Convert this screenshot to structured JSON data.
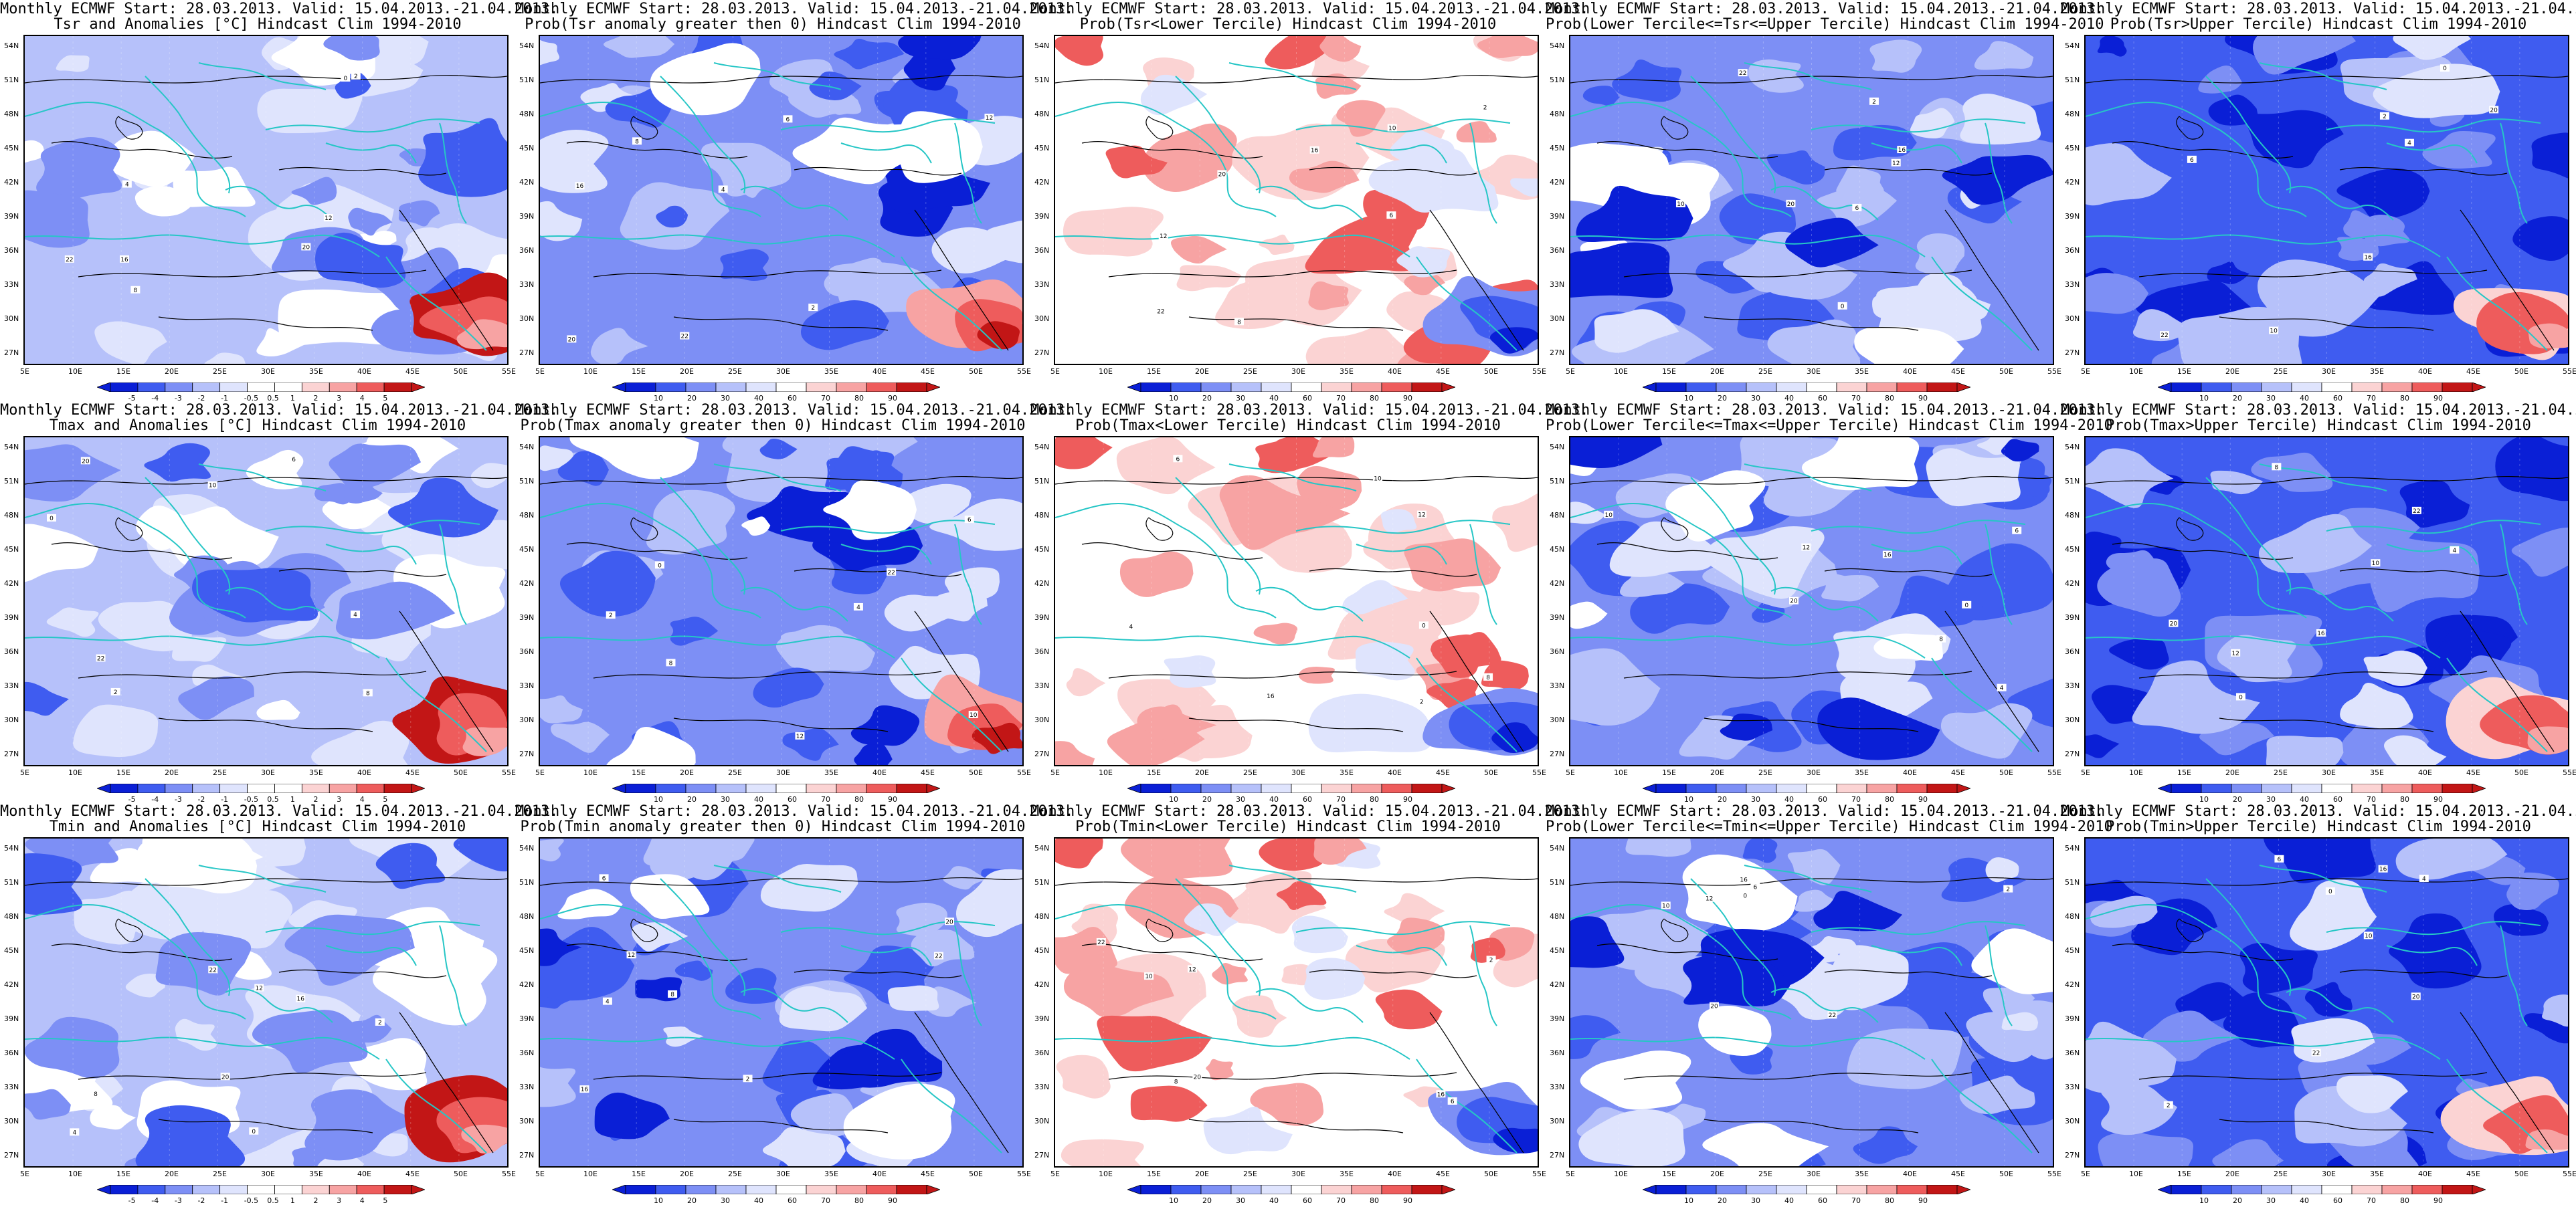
{
  "common": {
    "header": "Monthly ECMWF Start: 28.03.2013. Valid: 15.04.2013.-21.04.2013.",
    "lat_labels": [
      "54N",
      "51N",
      "48N",
      "45N",
      "42N",
      "39N",
      "36N",
      "33N",
      "30N",
      "27N"
    ],
    "lon_labels": [
      "5E",
      "10E",
      "15E",
      "20E",
      "25E",
      "30E",
      "35E",
      "40E",
      "45E",
      "50E",
      "55E"
    ],
    "anomaly_scale": [
      "-5",
      "-4",
      "-3",
      "-2",
      "-1",
      "-0.5",
      "0.5",
      "1",
      "2",
      "3",
      "4",
      "5"
    ],
    "prob_scale": [
      "10",
      "20",
      "30",
      "40",
      "60",
      "70",
      "80",
      "90"
    ],
    "colors": {
      "dark_blue": "#0a1fd6",
      "blue": "#3f5cf0",
      "mid_blue": "#7d8ff5",
      "light_blue": "#b6c1fa",
      "pale_blue": "#dfe4fd",
      "white": "#ffffff",
      "pale_red": "#fbd3d3",
      "light_red": "#f7a3a3",
      "red": "#ee5c5c",
      "dark_red": "#c21616",
      "coastline": "#26c6c6",
      "contour": "#000000"
    }
  },
  "panels": [
    {
      "subtitle": "Tsr and Anomalies [°C] Hindcast Clim 1994-2010",
      "scale": "anomaly",
      "tone": "anomaly-cool"
    },
    {
      "subtitle": "Prob(Tsr anomaly greater then 0) Hindcast Clim 1994-2010",
      "scale": "prob",
      "tone": "cool-warm-se"
    },
    {
      "subtitle": "Prob(Tsr<Lower Tercile) Hindcast Clim 1994-2010",
      "scale": "prob",
      "tone": "warm"
    },
    {
      "subtitle": "Prob(Lower Tercile<=Tsr<=Upper Tercile) Hindcast Clim 1994-2010",
      "scale": "prob",
      "tone": "cool-mid"
    },
    {
      "subtitle": "Prob(Tsr>Upper Tercile) Hindcast Clim 1994-2010",
      "scale": "prob",
      "tone": "cool-strong"
    },
    {
      "subtitle": "Tmax and Anomalies [°C] Hindcast Clim 1994-2010",
      "scale": "anomaly",
      "tone": "anomaly-cool"
    },
    {
      "subtitle": "Prob(Tmax anomaly greater then 0) Hindcast Clim 1994-2010",
      "scale": "prob",
      "tone": "cool-warm-se"
    },
    {
      "subtitle": "Prob(Tmax<Lower Tercile) Hindcast Clim 1994-2010",
      "scale": "prob",
      "tone": "warm"
    },
    {
      "subtitle": "Prob(Lower Tercile<=Tmax<=Upper Tercile) Hindcast Clim 1994-2010",
      "scale": "prob",
      "tone": "cool-mid"
    },
    {
      "subtitle": "Prob(Tmax>Upper Tercile) Hindcast Clim 1994-2010",
      "scale": "prob",
      "tone": "cool-strong"
    },
    {
      "subtitle": "Tmin and Anomalies [°C] Hindcast Clim 1994-2010",
      "scale": "anomaly",
      "tone": "anomaly-cool"
    },
    {
      "subtitle": "Prob(Tmin anomaly greater then 0) Hindcast Clim 1994-2010",
      "scale": "prob",
      "tone": "cool"
    },
    {
      "subtitle": "Prob(Tmin<Lower Tercile) Hindcast Clim 1994-2010",
      "scale": "prob",
      "tone": "warm"
    },
    {
      "subtitle": "Prob(Lower Tercile<=Tmin<=Upper Tercile) Hindcast Clim 1994-2010",
      "scale": "prob",
      "tone": "cool-mid"
    },
    {
      "subtitle": "Prob(Tmin>Upper Tercile) Hindcast Clim 1994-2010",
      "scale": "prob",
      "tone": "cool-strong"
    }
  ]
}
